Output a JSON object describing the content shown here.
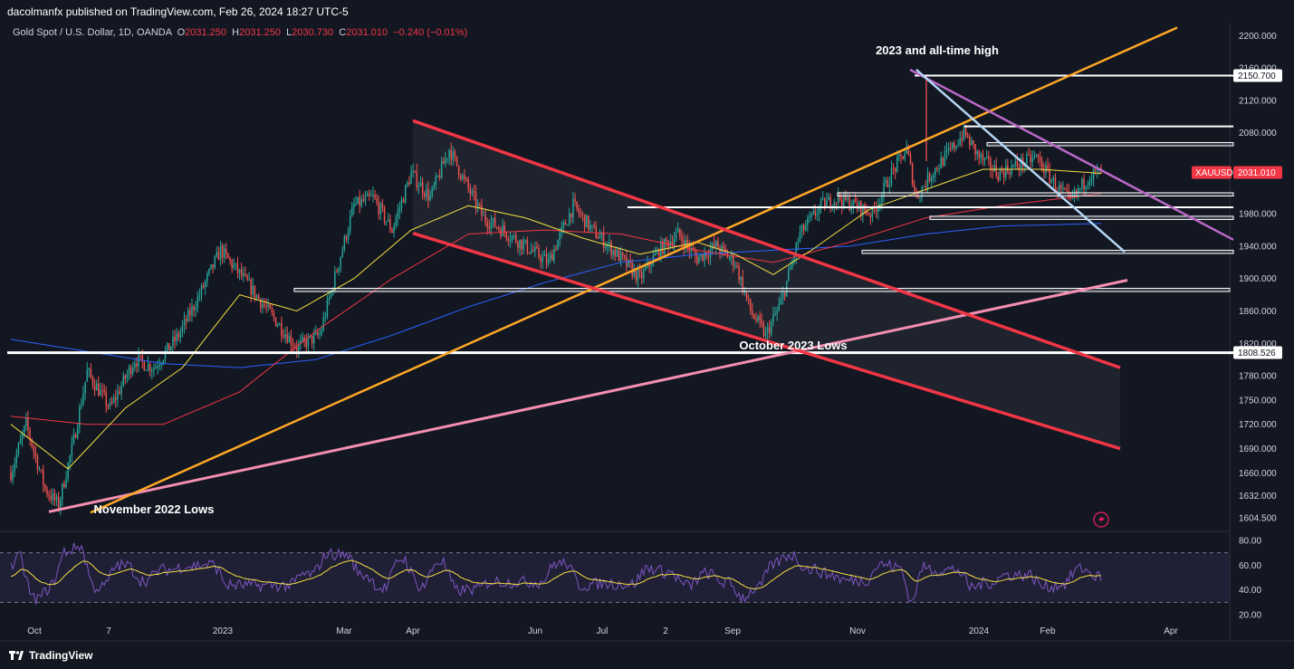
{
  "header": {
    "published": "dacolmanfx published on TradingView.com, Feb 26, 2024 18:27 UTC-5"
  },
  "legend": {
    "symbol": "Gold Spot / U.S. Dollar, 1D, OANDA",
    "o_label": "O",
    "o": "2031.250",
    "h_label": "H",
    "h": "2031.250",
    "l_label": "L",
    "l": "2030.730",
    "c_label": "C",
    "c": "2031.010",
    "change": "−0.240 (−0.01%)"
  },
  "footer": {
    "brand": "TradingView"
  },
  "colors": {
    "background": "#131722",
    "candle_up": "#26a69a",
    "candle_down": "#ef5350",
    "sma_fast": "#f5e042",
    "sma_mid": "#f23645",
    "sma_slow": "#2962ff",
    "channel": "#f23645",
    "uptrend": "#ffa726",
    "long_support": "#f48fb1",
    "resistance": "#ba68c8",
    "downtrend": "#b3d7f5",
    "rsi": "#7e57c2"
  },
  "chart_data": {
    "type": "candlestick",
    "title": "Gold Spot / U.S. Dollar, 1D, OANDA",
    "symbol": "XAUUSD",
    "last_price": "2031.010",
    "y_axis": {
      "ylim": [
        1590,
        2215
      ],
      "ticks": [
        "2200.000",
        "2160.000",
        "2120.000",
        "2080.000",
        "1980.000",
        "1940.000",
        "1900.000",
        "1860.000",
        "1820.000",
        "1780.000",
        "1750.000",
        "1720.000",
        "1690.000",
        "1660.000",
        "1632.000",
        "1604.500"
      ],
      "price_tags": [
        "2150.700",
        "1808.526"
      ]
    },
    "x_axis": {
      "ticks": [
        "Oct",
        "7",
        "2023",
        "Mar",
        "Apr",
        "Jun",
        "Jul",
        "2",
        "Sep",
        "Nov",
        "2024",
        "Feb",
        "Apr"
      ]
    },
    "annotations": [
      {
        "text": "2023 and all-time high"
      },
      {
        "text": "October 2023 Lows"
      },
      {
        "text": "November 2022 Lows"
      }
    ],
    "levels": [
      2150.7,
      2088,
      2066,
      2004,
      1988,
      1975,
      1933,
      1886,
      1808.5
    ],
    "series": [
      {
        "name": "XAUUSD",
        "kind": "ohlc",
        "anchor_points": [
          [
            0,
            1660
          ],
          [
            8,
            1720
          ],
          [
            18,
            1640
          ],
          [
            25,
            1620
          ],
          [
            33,
            1700
          ],
          [
            40,
            1785
          ],
          [
            52,
            1740
          ],
          [
            65,
            1800
          ],
          [
            75,
            1790
          ],
          [
            88,
            1830
          ],
          [
            98,
            1875
          ],
          [
            110,
            1935
          ],
          [
            122,
            1900
          ],
          [
            135,
            1860
          ],
          [
            150,
            1815
          ],
          [
            162,
            1830
          ],
          [
            172,
            1920
          ],
          [
            180,
            1990
          ],
          [
            190,
            2000
          ],
          [
            200,
            1960
          ],
          [
            210,
            2030
          ],
          [
            220,
            2000
          ],
          [
            230,
            2060
          ],
          [
            238,
            2020
          ],
          [
            248,
            1975
          ],
          [
            258,
            1960
          ],
          [
            270,
            1940
          ],
          [
            282,
            1920
          ],
          [
            295,
            1990
          ],
          [
            305,
            1960
          ],
          [
            318,
            1930
          ],
          [
            330,
            1900
          ],
          [
            340,
            1935
          ],
          [
            350,
            1955
          ],
          [
            360,
            1925
          ],
          [
            370,
            1940
          ],
          [
            380,
            1920
          ],
          [
            388,
            1860
          ],
          [
            396,
            1830
          ],
          [
            404,
            1870
          ],
          [
            414,
            1955
          ],
          [
            425,
            1990
          ],
          [
            434,
            2000
          ],
          [
            443,
            1990
          ],
          [
            452,
            1980
          ],
          [
            462,
            2030
          ],
          [
            470,
            2060
          ],
          [
            475,
            2000
          ],
          [
            483,
            2030
          ],
          [
            492,
            2055
          ],
          [
            500,
            2080
          ],
          [
            508,
            2050
          ],
          [
            518,
            2030
          ],
          [
            528,
            2040
          ],
          [
            538,
            2050
          ],
          [
            548,
            2015
          ],
          [
            556,
            1995
          ],
          [
            566,
            2028
          ],
          [
            572,
            2031
          ]
        ]
      },
      {
        "name": "MA fast",
        "kind": "line",
        "anchor_points": [
          [
            0,
            1720
          ],
          [
            30,
            1665
          ],
          [
            60,
            1740
          ],
          [
            90,
            1790
          ],
          [
            120,
            1880
          ],
          [
            150,
            1860
          ],
          [
            180,
            1900
          ],
          [
            210,
            1960
          ],
          [
            240,
            1990
          ],
          [
            270,
            1975
          ],
          [
            300,
            1950
          ],
          [
            330,
            1930
          ],
          [
            360,
            1945
          ],
          [
            380,
            1930
          ],
          [
            400,
            1905
          ],
          [
            420,
            1935
          ],
          [
            450,
            1985
          ],
          [
            480,
            2010
          ],
          [
            510,
            2035
          ],
          [
            540,
            2035
          ],
          [
            572,
            2030
          ]
        ]
      },
      {
        "name": "MA mid",
        "kind": "line",
        "anchor_points": [
          [
            0,
            1730
          ],
          [
            40,
            1720
          ],
          [
            80,
            1720
          ],
          [
            120,
            1760
          ],
          [
            160,
            1835
          ],
          [
            200,
            1900
          ],
          [
            240,
            1955
          ],
          [
            280,
            1960
          ],
          [
            320,
            1955
          ],
          [
            360,
            1935
          ],
          [
            400,
            1920
          ],
          [
            440,
            1945
          ],
          [
            480,
            1975
          ],
          [
            520,
            1990
          ],
          [
            572,
            2005
          ]
        ]
      },
      {
        "name": "MA slow",
        "kind": "line",
        "anchor_points": [
          [
            0,
            1825
          ],
          [
            40,
            1810
          ],
          [
            80,
            1795
          ],
          [
            120,
            1790
          ],
          [
            160,
            1800
          ],
          [
            200,
            1830
          ],
          [
            240,
            1865
          ],
          [
            280,
            1895
          ],
          [
            320,
            1920
          ],
          [
            360,
            1930
          ],
          [
            400,
            1935
          ],
          [
            440,
            1940
          ],
          [
            480,
            1955
          ],
          [
            520,
            1965
          ],
          [
            572,
            1968
          ]
        ]
      },
      {
        "name": "RSI",
        "kind": "oscillator",
        "ylim": [
          15,
          85
        ],
        "levels": [
          70,
          30
        ],
        "ticks": [
          "80.00",
          "60.00",
          "40.00",
          "20.00"
        ]
      }
    ]
  }
}
